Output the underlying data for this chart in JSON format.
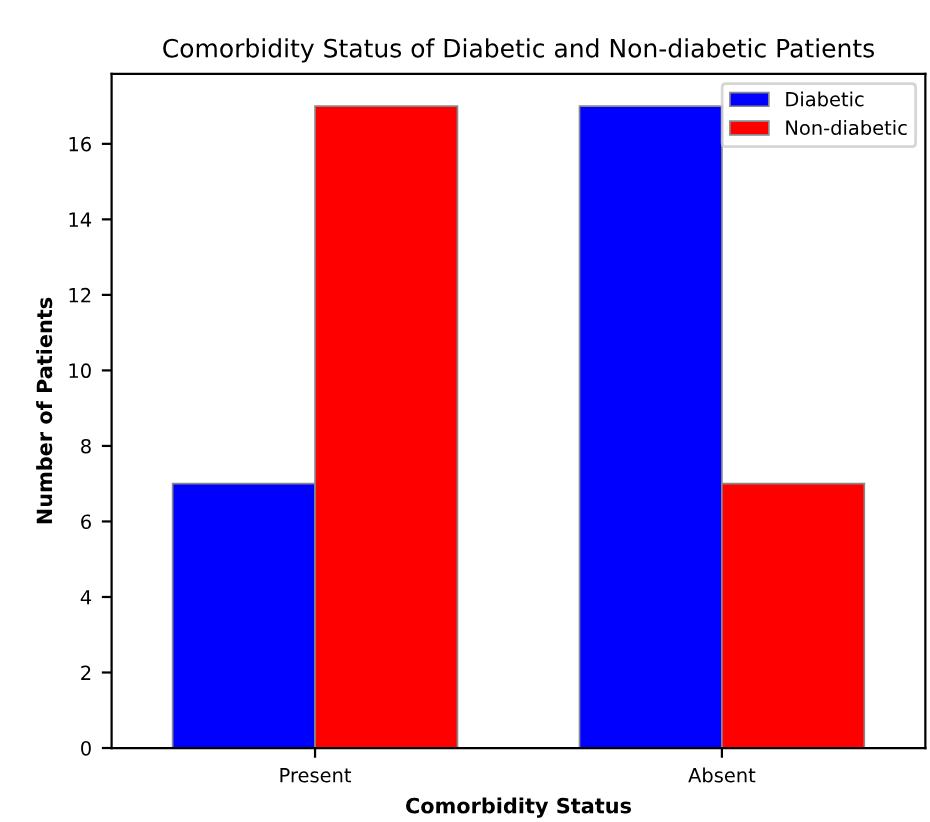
{
  "chart_data": {
    "type": "bar",
    "title": "Comorbidity Status of Diabetic and Non-diabetic Patients",
    "xlabel": "Comorbidity Status",
    "ylabel": "Number of Patients",
    "categories": [
      "Present",
      "Absent"
    ],
    "series": [
      {
        "name": "Diabetic",
        "color": "#0000ff",
        "values": [
          7,
          17
        ]
      },
      {
        "name": "Non-diabetic",
        "color": "#ff0000",
        "values": [
          17,
          7
        ]
      }
    ],
    "ylim": [
      0,
      17.85
    ],
    "yticks": [
      0,
      2,
      4,
      6,
      8,
      10,
      12,
      14,
      16
    ],
    "grid": false,
    "legend": "top right"
  }
}
